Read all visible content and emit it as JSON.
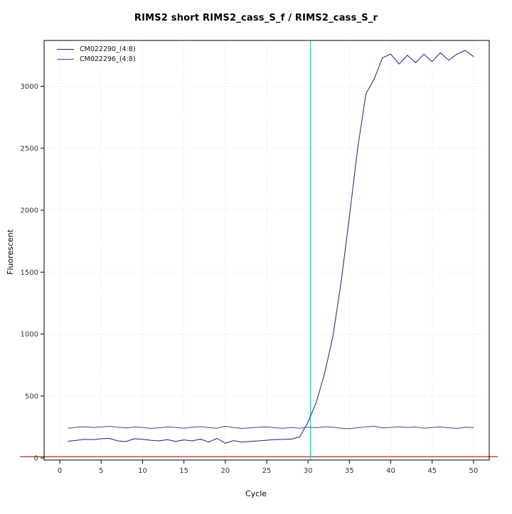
{
  "page": {
    "background": "#ffffff"
  },
  "chart_data": {
    "type": "line",
    "title": "RIMS2 short RIMS2_cass_S_f / RIMS2_cass_S_r",
    "xlabel": "Cycle",
    "ylabel": "Fluorescent",
    "xlim": [
      -1.9,
      51.9
    ],
    "ylim": [
      -17,
      3370
    ],
    "x_ticks": [
      0,
      5,
      10,
      15,
      20,
      25,
      30,
      35,
      40,
      45,
      50
    ],
    "y_ticks": [
      0,
      500,
      1000,
      1500,
      2000,
      2500,
      3000
    ],
    "grid": true,
    "legend_position": "top-left",
    "x": [
      1,
      2,
      3,
      4,
      5,
      6,
      7,
      8,
      9,
      10,
      11,
      12,
      13,
      14,
      15,
      16,
      17,
      18,
      19,
      20,
      21,
      22,
      23,
      24,
      25,
      26,
      27,
      28,
      29,
      30,
      31,
      32,
      33,
      34,
      35,
      36,
      37,
      38,
      39,
      40,
      41,
      42,
      43,
      44,
      45,
      46,
      47,
      48,
      49,
      50
    ],
    "series": [
      {
        "name": "CM022290_(4:8)",
        "color": "#1c1c8a",
        "values": [
          135,
          142,
          150,
          148,
          155,
          158,
          138,
          132,
          155,
          150,
          143,
          138,
          148,
          134,
          146,
          138,
          152,
          128,
          158,
          118,
          140,
          128,
          133,
          138,
          143,
          148,
          150,
          152,
          170,
          290,
          450,
          680,
          980,
          1420,
          1950,
          2500,
          2940,
          3060,
          3230,
          3260,
          3180,
          3250,
          3190,
          3260,
          3200,
          3270,
          3210,
          3260,
          3290,
          3240
        ]
      },
      {
        "name": "CM022296_(4:8)",
        "color": "#44449e",
        "values": [
          240,
          248,
          252,
          246,
          250,
          255,
          248,
          242,
          250,
          246,
          238,
          244,
          250,
          246,
          240,
          248,
          252,
          245,
          240,
          256,
          246,
          238,
          243,
          248,
          250,
          244,
          240,
          246,
          240,
          248,
          244,
          252,
          248,
          240,
          236,
          244,
          250,
          256,
          242,
          246,
          252,
          246,
          250,
          240,
          246,
          250,
          244,
          238,
          248,
          244
        ]
      }
    ],
    "threshold_line": {
      "value": 10,
      "color": "#c23b30"
    },
    "ct_line": {
      "cycle": 30.3,
      "color": "#00e0e0"
    },
    "axis_color": "#000000",
    "tick_label_color": "#333333",
    "grid_color": "#d9d9d9"
  }
}
